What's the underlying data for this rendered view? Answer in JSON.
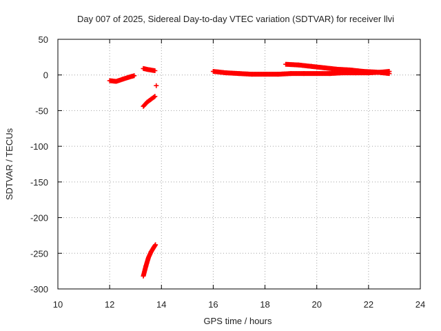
{
  "chart_data": {
    "type": "scatter",
    "title": "Day 007 of 2025, Sidereal Day-to-day VTEC variation (SDTVAR) for receiver llvi",
    "xlabel": "GPS time / hours",
    "ylabel": "SDTVAR / TECUs",
    "xlim": [
      10,
      24
    ],
    "ylim": [
      -300,
      50
    ],
    "xticks": [
      10,
      12,
      14,
      16,
      18,
      20,
      22,
      24
    ],
    "yticks": [
      -300,
      -250,
      -200,
      -150,
      -100,
      -50,
      0,
      50
    ],
    "xtick_labels": [
      "10",
      "12",
      "14",
      "16",
      "18",
      "20",
      "22",
      "24"
    ],
    "ytick_labels": [
      "-300",
      "-250",
      "-200",
      "-150",
      "-100",
      "-50",
      "0",
      "50"
    ],
    "grid": true,
    "marker": "plus",
    "color": "#ff0000",
    "series": [
      {
        "segments": [
          [
            [
              12.0,
              -8
            ],
            [
              12.25,
              -9
            ],
            [
              12.5,
              -6
            ],
            [
              12.75,
              -3
            ],
            [
              12.95,
              -1
            ]
          ],
          [
            [
              13.3,
              9
            ],
            [
              13.5,
              7.5
            ],
            [
              13.75,
              6
            ]
          ],
          [
            [
              13.3,
              -44
            ],
            [
              13.45,
              -38
            ],
            [
              13.6,
              -34
            ],
            [
              13.75,
              -30
            ]
          ],
          [
            [
              13.3,
              -282
            ],
            [
              13.4,
              -268
            ],
            [
              13.5,
              -256
            ],
            [
              13.6,
              -248
            ],
            [
              13.7,
              -242
            ],
            [
              13.77,
              -238
            ]
          ],
          [
            [
              16.0,
              5
            ],
            [
              16.5,
              3
            ],
            [
              17.0,
              2
            ],
            [
              17.5,
              1
            ],
            [
              18.0,
              1
            ],
            [
              18.5,
              1
            ],
            [
              19.0,
              2
            ],
            [
              19.5,
              2
            ],
            [
              20.0,
              2
            ],
            [
              20.5,
              2
            ],
            [
              21.0,
              3
            ],
            [
              21.5,
              3
            ],
            [
              22.0,
              3
            ],
            [
              22.5,
              4
            ],
            [
              22.8,
              5
            ]
          ],
          [
            [
              18.8,
              15
            ],
            [
              19.3,
              14
            ],
            [
              19.8,
              12
            ],
            [
              20.3,
              10
            ],
            [
              20.8,
              8
            ],
            [
              21.3,
              7
            ],
            [
              21.8,
              5
            ],
            [
              22.3,
              4
            ],
            [
              22.8,
              2
            ]
          ]
        ],
        "points": [
          [
            13.8,
            -15
          ]
        ]
      }
    ]
  }
}
